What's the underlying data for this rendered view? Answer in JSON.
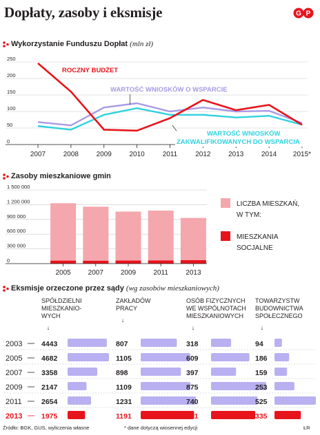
{
  "header": {
    "title": "Dopłaty, zasoby i eksmisje",
    "logo_text": "GP",
    "brand_color": "#e8141c"
  },
  "section1": {
    "title": "Wykorzystanie Funduszu Dopłat",
    "unit": "(mln zł)"
  },
  "section2": {
    "title": "Zasoby mieszkaniowe gmin"
  },
  "section3": {
    "title": "Eksmisje orzeczone przez sądy",
    "unit": "(wg zasobów mieszkaniowych)"
  },
  "footer": {
    "source": "Źródło: BGK, GUS, wyliczenia własne",
    "note": "* dane dotyczą wiosennej edycji",
    "author": "ŁR"
  },
  "chart_data": [
    {
      "type": "line",
      "x": [
        "2007",
        "2008",
        "2009",
        "2010",
        "2011",
        "2012",
        "2013",
        "2014",
        "2015*"
      ],
      "ylim": [
        0,
        250
      ],
      "y_ticks": [
        "0",
        "50",
        "100",
        "150",
        "200",
        "250"
      ],
      "grid": true,
      "series": [
        {
          "name": "ROCZNY BUDŻET",
          "color": "#e8141c",
          "values": [
            246,
            160,
            45,
            42,
            80,
            135,
            104,
            120,
            60
          ]
        },
        {
          "name": "WARTOŚĆ WNIOSKÓW O WSPARCIE",
          "color": "#a89ae6",
          "values": [
            68,
            58,
            112,
            125,
            100,
            112,
            100,
            102,
            65
          ]
        },
        {
          "name": "WARTOŚĆ WNIOSKÓW ZAKWALIFIKOWANYCH DO WSPARCIA",
          "color": "#2fd2e0",
          "values": [
            56,
            45,
            90,
            110,
            90,
            90,
            82,
            87,
            60
          ]
        }
      ]
    },
    {
      "type": "bar",
      "categories": [
        "2005",
        "2007",
        "2009",
        "2011",
        "2013"
      ],
      "ylim": [
        0,
        1500000
      ],
      "y_ticks": [
        "0",
        "300 000",
        "600 000",
        "900 000",
        "1 200 000",
        "1 500 000"
      ],
      "grid": true,
      "series": [
        {
          "name": "LICZBA MIESZKAŃ, W TYM:",
          "color": "#f4a7ac",
          "values": [
            1230000,
            1160000,
            1060000,
            1080000,
            930000
          ]
        },
        {
          "name": "MIESZKANIA SOCJALNE",
          "color": "#e8141c",
          "values": [
            60000,
            58000,
            62000,
            64000,
            70000
          ]
        }
      ],
      "legend": [
        {
          "label": "LICZBA MIESZKAŃ, W TYM:",
          "color": "#f4a7ac"
        },
        {
          "label": "MIESZKANIA SOCJALNE",
          "color": "#e8141c"
        }
      ]
    },
    {
      "type": "table",
      "years": [
        "2003",
        "2005",
        "2007",
        "2009",
        "2011",
        "2013"
      ],
      "highlight_year": "2013",
      "columns": [
        {
          "name": "SPÓŁDZIELNI MIESZKANIO-WYCH",
          "lines": [
            "SPÓŁDZIELNI",
            "MIESZKANIO-",
            "WYCH"
          ],
          "arrow": "↓",
          "values": [
            4443,
            4682,
            3358,
            2147,
            2654,
            1975
          ],
          "labels": [
            "4443",
            "4682",
            "3358",
            "2147",
            "2654",
            "1975"
          ]
        },
        {
          "name": "ZAKŁADÓW PRACY",
          "lines": [
            "ZAKŁADÓW",
            "PRACY"
          ],
          "arrow": "↓",
          "values": [
            807,
            1105,
            898,
            1109,
            1231,
            1191
          ],
          "labels": [
            "807",
            "1105",
            "898",
            "1109",
            "1231",
            "1191"
          ]
        },
        {
          "name": "OSÓB FIZYCZNYCH WE WSPÓLNOTACH MIESZKANIOWYCH",
          "lines": [
            "OSÓB FIZYCZNYCH",
            "WE WSPÓLNOTACH",
            "MIESZKANIOWYCH"
          ],
          "arrow": "↓",
          "values": [
            318,
            609,
            397,
            875,
            740,
            701
          ],
          "labels": [
            "318",
            "609",
            "397",
            "875",
            "740",
            "701"
          ]
        },
        {
          "name": "TOWARZYSTW BUDOWNICTWA SPOŁECZNEGO",
          "lines": [
            "TOWARZYSTW",
            "BUDOWNICTWA",
            "SPOŁECZNEGO"
          ],
          "arrow": "↓",
          "values": [
            94,
            186,
            159,
            253,
            525,
            335
          ],
          "labels": [
            "94",
            "186",
            "159",
            "253",
            "525",
            "335"
          ]
        }
      ]
    }
  ]
}
